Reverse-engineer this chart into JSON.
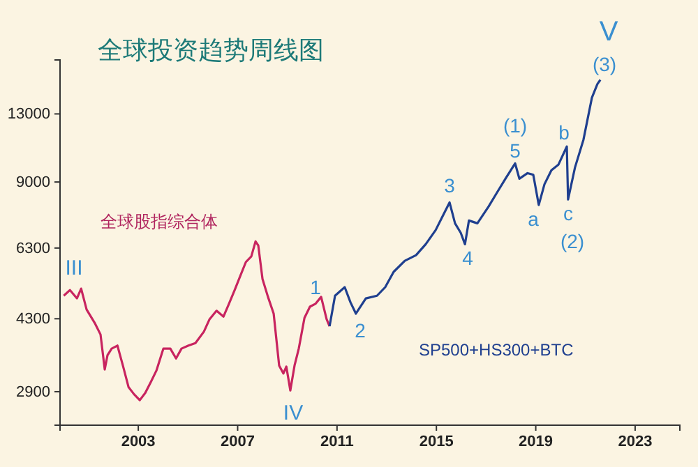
{
  "chart_data": {
    "type": "line",
    "title": "全球投资趋势周线图",
    "log": "y",
    "grid": false,
    "marker": "none",
    "line_style": "solid",
    "xlim": [
      1999.85,
      2024.8
    ],
    "xticks": [
      2003,
      2007,
      2011,
      2015,
      2019,
      2023
    ],
    "ylim": [
      2420,
      17400
    ],
    "yticks": [
      2900,
      4300,
      6300,
      9000,
      13000
    ],
    "series": [
      {
        "color": "#c8245f",
        "x": [
          2000.0,
          2000.25,
          2000.53,
          2000.7,
          2000.92,
          2001.26,
          2001.48,
          2001.65,
          2001.76,
          2001.93,
          2002.16,
          2002.38,
          2002.61,
          2002.83,
          2003.06,
          2003.28,
          2003.51,
          2003.73,
          2004.01,
          2004.29,
          2004.52,
          2004.74,
          2005.02,
          2005.3,
          2005.64,
          2005.87,
          2006.15,
          2006.43,
          2006.65,
          2006.88,
          2007.1,
          2007.33,
          2007.55,
          2007.72,
          2007.83,
          2008.0,
          2008.22,
          2008.45,
          2008.67,
          2008.84,
          2008.96,
          2009.12,
          2009.29,
          2009.46,
          2009.69,
          2009.91,
          2010.13,
          2010.36,
          2010.58,
          2010.7
        ],
        "values": [
          4870,
          5020,
          4800,
          5060,
          4520,
          4190,
          3950,
          3270,
          3530,
          3660,
          3720,
          3340,
          2970,
          2860,
          2770,
          2880,
          3060,
          3250,
          3660,
          3660,
          3470,
          3660,
          3720,
          3770,
          4010,
          4290,
          4490,
          4350,
          4660,
          5020,
          5410,
          5840,
          6020,
          6530,
          6390,
          5330,
          4840,
          4420,
          3340,
          3200,
          3320,
          2920,
          3340,
          3660,
          4320,
          4590,
          4660,
          4840,
          4290,
          4130
        ]
      },
      {
        "color": "#1f3f8f",
        "x": [
          2010.7,
          2010.92,
          2011.31,
          2011.54,
          2011.76,
          2012.16,
          2012.61,
          2012.94,
          2013.28,
          2013.73,
          2014.18,
          2014.57,
          2014.97,
          2015.25,
          2015.53,
          2015.75,
          2015.98,
          2016.15,
          2016.31,
          2016.65,
          2017.1,
          2017.44,
          2017.78,
          2018.17,
          2018.34,
          2018.67,
          2018.9,
          2019.12,
          2019.35,
          2019.63,
          2019.91,
          2020.25,
          2020.3,
          2020.58,
          2020.92,
          2021.26,
          2021.48,
          2021.6
        ],
        "values": [
          4130,
          4870,
          5100,
          4700,
          4420,
          4800,
          4870,
          5100,
          5540,
          5880,
          6060,
          6430,
          6940,
          7480,
          8060,
          7200,
          6840,
          6430,
          7310,
          7200,
          7880,
          8500,
          9160,
          9950,
          9160,
          9440,
          9360,
          7950,
          8890,
          9590,
          9880,
          10900,
          8190,
          9740,
          11310,
          14190,
          15270,
          15630
        ]
      }
    ],
    "annotations": [
      "全球股指综合体",
      "SP500+HS300+BTC",
      "V",
      "III",
      "IV",
      "1",
      "2",
      "3",
      "4",
      "5",
      "(1)",
      "a",
      "b",
      "c",
      "(2)",
      "(3)"
    ]
  }
}
